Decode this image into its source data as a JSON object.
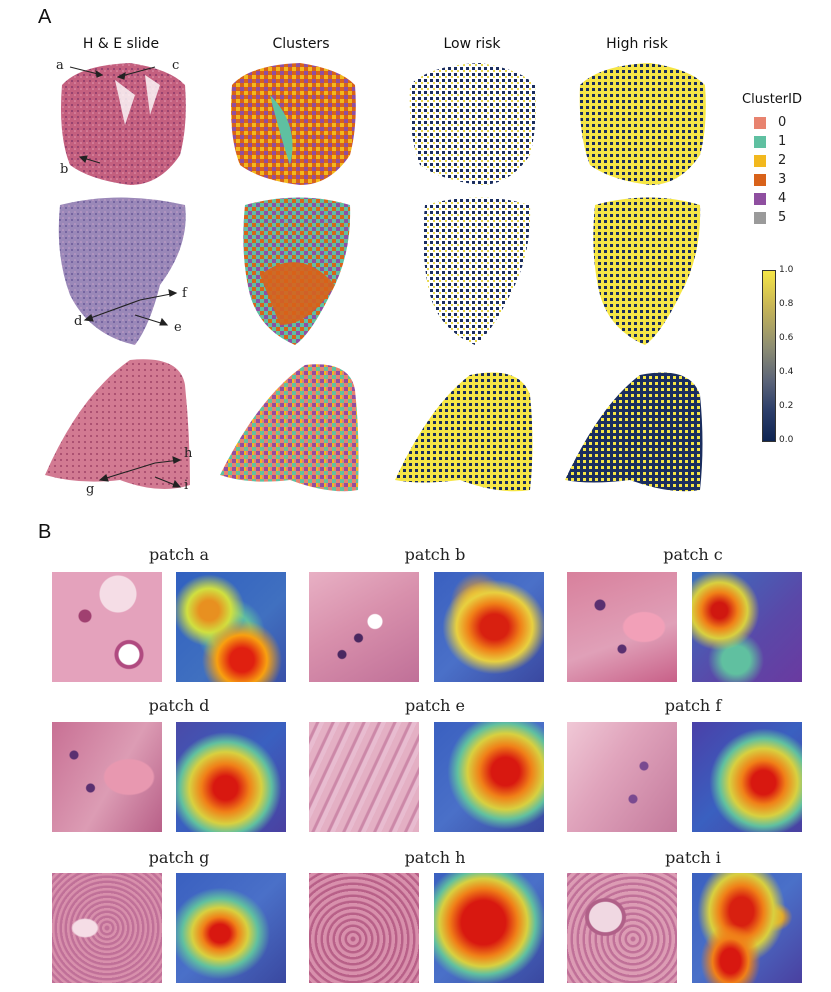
{
  "panel_a": {
    "letter": "A",
    "columns": [
      "H & E slide",
      "Clusters",
      "Low risk",
      "High risk"
    ],
    "arrow_labels": [
      "a",
      "b",
      "c",
      "d",
      "e",
      "f",
      "g",
      "h",
      "i"
    ],
    "legend": {
      "title": "ClusterID",
      "items": [
        {
          "label": "0",
          "color": "#e8836f"
        },
        {
          "label": "1",
          "color": "#5fc0a1"
        },
        {
          "label": "2",
          "color": "#f2b81e"
        },
        {
          "label": "3",
          "color": "#d8621a"
        },
        {
          "label": "4",
          "color": "#8f4fa0"
        },
        {
          "label": "5",
          "color": "#9a9a9a"
        }
      ]
    },
    "colorbar": {
      "ticks": [
        "1.0",
        "0.8",
        "0.6",
        "0.4",
        "0.2",
        "0.0"
      ],
      "colors": [
        "#f5e546",
        "#1a2d5e"
      ]
    }
  },
  "panel_b": {
    "letter": "B",
    "patches": [
      "patch a",
      "patch b",
      "patch c",
      "patch d",
      "patch e",
      "patch f",
      "patch g",
      "patch h",
      "patch i"
    ]
  }
}
